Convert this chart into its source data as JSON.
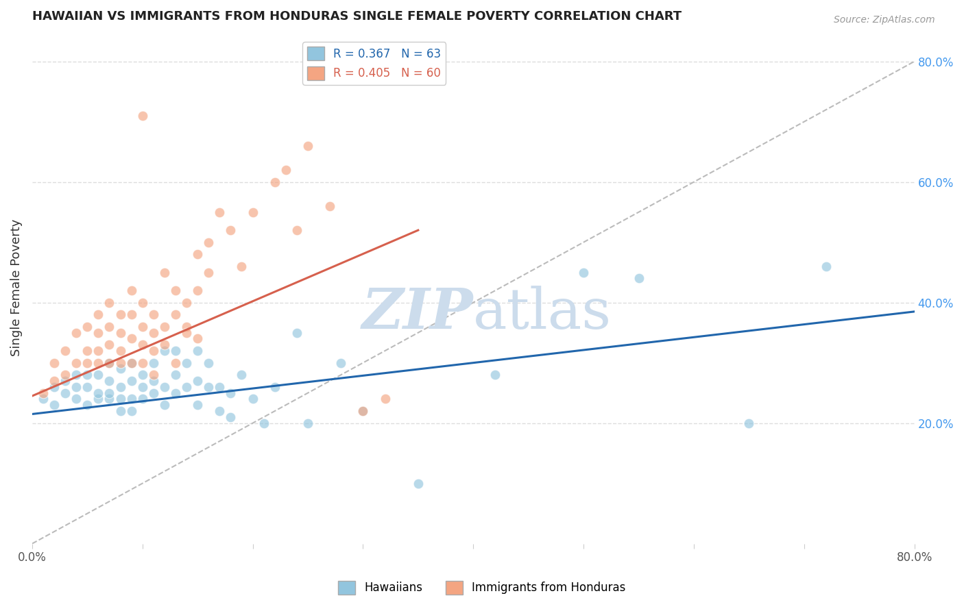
{
  "title": "HAWAIIAN VS IMMIGRANTS FROM HONDURAS SINGLE FEMALE POVERTY CORRELATION CHART",
  "source": "Source: ZipAtlas.com",
  "ylabel": "Single Female Poverty",
  "right_yticks": [
    "80.0%",
    "60.0%",
    "40.0%",
    "20.0%"
  ],
  "right_ytick_vals": [
    0.8,
    0.6,
    0.4,
    0.2
  ],
  "xlim": [
    0.0,
    0.8
  ],
  "ylim": [
    0.0,
    0.85
  ],
  "blue_color": "#92c5de",
  "pink_color": "#f4a582",
  "blue_line_color": "#2166ac",
  "pink_line_color": "#d6604d",
  "diag_color": "#bbbbbb",
  "watermark_color": "#ccdcec",
  "hawaiians_x": [
    0.01,
    0.02,
    0.02,
    0.03,
    0.03,
    0.04,
    0.04,
    0.04,
    0.05,
    0.05,
    0.05,
    0.06,
    0.06,
    0.06,
    0.07,
    0.07,
    0.07,
    0.07,
    0.08,
    0.08,
    0.08,
    0.08,
    0.09,
    0.09,
    0.09,
    0.09,
    0.1,
    0.1,
    0.1,
    0.11,
    0.11,
    0.11,
    0.12,
    0.12,
    0.12,
    0.13,
    0.13,
    0.13,
    0.14,
    0.14,
    0.15,
    0.15,
    0.15,
    0.16,
    0.16,
    0.17,
    0.17,
    0.18,
    0.18,
    0.19,
    0.2,
    0.21,
    0.22,
    0.24,
    0.25,
    0.28,
    0.3,
    0.35,
    0.42,
    0.5,
    0.55,
    0.65,
    0.72
  ],
  "hawaiians_y": [
    0.24,
    0.23,
    0.26,
    0.25,
    0.27,
    0.24,
    0.26,
    0.28,
    0.23,
    0.26,
    0.28,
    0.24,
    0.25,
    0.28,
    0.24,
    0.25,
    0.27,
    0.3,
    0.22,
    0.24,
    0.26,
    0.29,
    0.22,
    0.24,
    0.27,
    0.3,
    0.24,
    0.26,
    0.28,
    0.25,
    0.27,
    0.3,
    0.23,
    0.26,
    0.32,
    0.25,
    0.28,
    0.32,
    0.26,
    0.3,
    0.23,
    0.27,
    0.32,
    0.26,
    0.3,
    0.22,
    0.26,
    0.21,
    0.25,
    0.28,
    0.24,
    0.2,
    0.26,
    0.35,
    0.2,
    0.3,
    0.22,
    0.1,
    0.28,
    0.45,
    0.44,
    0.2,
    0.46
  ],
  "honduras_x": [
    0.01,
    0.02,
    0.02,
    0.03,
    0.03,
    0.04,
    0.04,
    0.05,
    0.05,
    0.05,
    0.06,
    0.06,
    0.06,
    0.06,
    0.07,
    0.07,
    0.07,
    0.07,
    0.08,
    0.08,
    0.08,
    0.08,
    0.09,
    0.09,
    0.09,
    0.09,
    0.1,
    0.1,
    0.1,
    0.1,
    0.11,
    0.11,
    0.11,
    0.11,
    0.12,
    0.12,
    0.12,
    0.13,
    0.13,
    0.13,
    0.14,
    0.14,
    0.14,
    0.15,
    0.15,
    0.15,
    0.16,
    0.16,
    0.17,
    0.18,
    0.19,
    0.2,
    0.22,
    0.23,
    0.24,
    0.25,
    0.27,
    0.3,
    0.32,
    0.1
  ],
  "honduras_y": [
    0.25,
    0.27,
    0.3,
    0.28,
    0.32,
    0.3,
    0.35,
    0.32,
    0.36,
    0.3,
    0.32,
    0.35,
    0.38,
    0.3,
    0.33,
    0.36,
    0.4,
    0.3,
    0.32,
    0.35,
    0.38,
    0.3,
    0.3,
    0.34,
    0.38,
    0.42,
    0.33,
    0.36,
    0.4,
    0.3,
    0.32,
    0.35,
    0.38,
    0.28,
    0.33,
    0.36,
    0.45,
    0.38,
    0.42,
    0.3,
    0.36,
    0.4,
    0.35,
    0.42,
    0.48,
    0.34,
    0.5,
    0.45,
    0.55,
    0.52,
    0.46,
    0.55,
    0.6,
    0.62,
    0.52,
    0.66,
    0.56,
    0.22,
    0.24,
    0.71
  ],
  "blue_trendline": [
    0.0,
    0.8,
    0.215,
    0.385
  ],
  "pink_trendline": [
    0.0,
    0.35,
    0.245,
    0.52
  ]
}
